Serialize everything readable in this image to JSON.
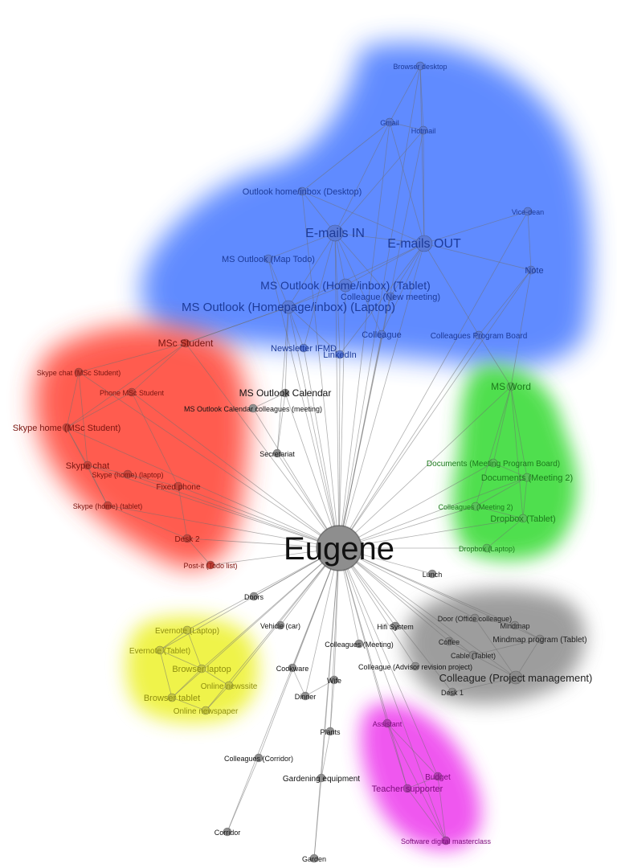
{
  "diagram": {
    "center": "Eugene",
    "clusters": [
      {
        "id": "blue",
        "color": "#4f7fff"
      },
      {
        "id": "red",
        "color": "#ff4b3e"
      },
      {
        "id": "green",
        "color": "#3ddc3a"
      },
      {
        "id": "gray",
        "color": "#8c8c8c"
      },
      {
        "id": "yellow",
        "color": "#eef23a"
      },
      {
        "id": "magenta",
        "color": "#ee44ee"
      }
    ],
    "nodes": [
      {
        "id": "eugene",
        "label": "Eugene",
        "cluster": "none",
        "size": "xl"
      },
      {
        "id": "browser_desktop",
        "label": "Browser desktop",
        "cluster": "blue"
      },
      {
        "id": "gmail",
        "label": "Gmail",
        "cluster": "blue"
      },
      {
        "id": "hotmail",
        "label": "Hotmail",
        "cluster": "blue"
      },
      {
        "id": "outlook_desktop",
        "label": "Outlook home/inbox (Desktop)",
        "cluster": "blue"
      },
      {
        "id": "vice_dean",
        "label": "Vice-dean",
        "cluster": "blue"
      },
      {
        "id": "emails_in",
        "label": "E-mails IN",
        "cluster": "blue",
        "size": "lg"
      },
      {
        "id": "emails_out",
        "label": "E-mails OUT",
        "cluster": "blue",
        "size": "lg"
      },
      {
        "id": "ms_outlook_map",
        "label": "MS Outlook (Map Todo)",
        "cluster": "blue"
      },
      {
        "id": "note",
        "label": "Note",
        "cluster": "blue"
      },
      {
        "id": "ms_outlook_tablet",
        "label": "MS Outlook (Home/inbox) (Tablet)",
        "cluster": "blue",
        "size": "md"
      },
      {
        "id": "colleague_new_meeting",
        "label": "Colleague (New meeting)",
        "cluster": "blue"
      },
      {
        "id": "ms_outlook_laptop",
        "label": "MS Outlook (Homepage/inbox) (Laptop)",
        "cluster": "blue",
        "size": "md"
      },
      {
        "id": "colleague",
        "label": "Colleague",
        "cluster": "blue"
      },
      {
        "id": "colleagues_program_board",
        "label": "Colleagues Program Board",
        "cluster": "blue"
      },
      {
        "id": "newsletter",
        "label": "Newsletter IFMD",
        "cluster": "blue"
      },
      {
        "id": "linkedin",
        "label": "LinkedIn",
        "cluster": "blue"
      },
      {
        "id": "msc_student",
        "label": "MSc Student",
        "cluster": "red"
      },
      {
        "id": "skype_chat_msc",
        "label": "Skype chat (MSc Student)",
        "cluster": "red"
      },
      {
        "id": "phone_msc",
        "label": "Phone MSc Student",
        "cluster": "red"
      },
      {
        "id": "skype_home_msc",
        "label": "Skype home (MSc Student)",
        "cluster": "red"
      },
      {
        "id": "skype_chat",
        "label": "Skype chat",
        "cluster": "red"
      },
      {
        "id": "skype_home_laptop",
        "label": "Skype (home) (laptop)",
        "cluster": "red"
      },
      {
        "id": "fixed_phone",
        "label": "Fixed phone",
        "cluster": "red"
      },
      {
        "id": "skype_home_tablet",
        "label": "Skype (home) (tablet)",
        "cluster": "red"
      },
      {
        "id": "desk2",
        "label": "Desk 2",
        "cluster": "red"
      },
      {
        "id": "postit",
        "label": "Post-it (Todo list)",
        "cluster": "red"
      },
      {
        "id": "ms_outlook_calendar",
        "label": "MS Outlook Calendar",
        "cluster": "none"
      },
      {
        "id": "ms_outlook_cal_coll",
        "label": "MS Outlook Calendar colleagues (meeting)",
        "cluster": "none"
      },
      {
        "id": "secretariat",
        "label": "Secretariat",
        "cluster": "none"
      },
      {
        "id": "ms_word",
        "label": "MS Word",
        "cluster": "green"
      },
      {
        "id": "docs_meeting_board",
        "label": "Documents (Meeting Program Board)",
        "cluster": "green"
      },
      {
        "id": "docs_meeting2",
        "label": "Documents (Meeting 2)",
        "cluster": "green"
      },
      {
        "id": "colleagues_meeting2",
        "label": "Colleagues (Meeting 2)",
        "cluster": "green"
      },
      {
        "id": "dropbox_tablet",
        "label": "Dropbox (Tablet)",
        "cluster": "green"
      },
      {
        "id": "dropbox_laptop",
        "label": "Dropbox (Laptop)",
        "cluster": "green"
      },
      {
        "id": "lunch",
        "label": "Lunch",
        "cluster": "none"
      },
      {
        "id": "doors",
        "label": "Doors",
        "cluster": "none"
      },
      {
        "id": "door_office",
        "label": "Door (Office colleague)",
        "cluster": "gray"
      },
      {
        "id": "mindmap",
        "label": "Mindmap",
        "cluster": "gray"
      },
      {
        "id": "mindmap_program",
        "label": "Mindmap program (Tablet)",
        "cluster": "gray"
      },
      {
        "id": "coffee",
        "label": "Coffee",
        "cluster": "gray"
      },
      {
        "id": "cable_tablet",
        "label": "Cable (Tablet)",
        "cluster": "gray"
      },
      {
        "id": "colleague_project",
        "label": "Colleague (Project management)",
        "cluster": "gray",
        "size": "md"
      },
      {
        "id": "desk1",
        "label": "Desk 1",
        "cluster": "gray"
      },
      {
        "id": "colleague_advisor",
        "label": "Colleague (Advisor revision project)",
        "cluster": "none"
      },
      {
        "id": "hifi",
        "label": "Hifi System",
        "cluster": "none"
      },
      {
        "id": "vehicle",
        "label": "Vehicle (car)",
        "cluster": "none"
      },
      {
        "id": "colleagues_meeting",
        "label": "Colleagues (Meeting)",
        "cluster": "none"
      },
      {
        "id": "evernote_laptop",
        "label": "Evernote (Laptop)",
        "cluster": "yellow"
      },
      {
        "id": "evernote_tablet",
        "label": "Evernote (Tablet)",
        "cluster": "yellow"
      },
      {
        "id": "browser_laptop",
        "label": "Browser laptop",
        "cluster": "yellow"
      },
      {
        "id": "online_newssite",
        "label": "Online newssite",
        "cluster": "yellow"
      },
      {
        "id": "browser_tablet",
        "label": "Browser tablet",
        "cluster": "yellow"
      },
      {
        "id": "online_newspaper",
        "label": "Online newspaper",
        "cluster": "yellow"
      },
      {
        "id": "cookware",
        "label": "Cookware",
        "cluster": "none"
      },
      {
        "id": "wife",
        "label": "Wife",
        "cluster": "none"
      },
      {
        "id": "dinner",
        "label": "Dinner",
        "cluster": "none"
      },
      {
        "id": "plants",
        "label": "Plants",
        "cluster": "none"
      },
      {
        "id": "colleagues_corridor",
        "label": "Colleagues (Corridor)",
        "cluster": "none"
      },
      {
        "id": "gardening",
        "label": "Gardening equipment",
        "cluster": "none"
      },
      {
        "id": "corridor",
        "label": "Corridor",
        "cluster": "none"
      },
      {
        "id": "garden",
        "label": "Garden",
        "cluster": "none"
      },
      {
        "id": "assistant",
        "label": "Assistant",
        "cluster": "magenta"
      },
      {
        "id": "budget",
        "label": "Budget",
        "cluster": "magenta"
      },
      {
        "id": "teacher_supporter",
        "label": "Teacher supporter",
        "cluster": "magenta"
      },
      {
        "id": "software_masterclass",
        "label": "Software digital masterclass",
        "cluster": "magenta"
      }
    ],
    "edges": [
      [
        "browser_desktop",
        "gmail"
      ],
      [
        "browser_desktop",
        "hotmail"
      ],
      [
        "browser_desktop",
        "emails_out"
      ],
      [
        "gmail",
        "hotmail"
      ],
      [
        "gmail",
        "emails_in"
      ],
      [
        "gmail",
        "emails_out"
      ],
      [
        "hotmail",
        "emails_out"
      ],
      [
        "hotmail",
        "emails_in"
      ],
      [
        "outlook_desktop",
        "emails_in"
      ],
      [
        "outlook_desktop",
        "emails_out"
      ],
      [
        "outlook_desktop",
        "gmail"
      ],
      [
        "vice_dean",
        "note"
      ],
      [
        "vice_dean",
        "emails_out"
      ],
      [
        "note",
        "emails_out"
      ],
      [
        "note",
        "ms_word"
      ],
      [
        "emails_in",
        "emails_out"
      ],
      [
        "emails_in",
        "ms_outlook_map"
      ],
      [
        "emails_in",
        "ms_outlook_tablet"
      ],
      [
        "emails_in",
        "ms_outlook_laptop"
      ],
      [
        "emails_in",
        "colleague"
      ],
      [
        "emails_in",
        "newsletter"
      ],
      [
        "emails_in",
        "linkedin"
      ],
      [
        "emails_in",
        "colleague_new_meeting"
      ],
      [
        "emails_out",
        "ms_outlook_tablet"
      ],
      [
        "emails_out",
        "ms_outlook_laptop"
      ],
      [
        "emails_out",
        "colleague"
      ],
      [
        "emails_out",
        "colleagues_program_board"
      ],
      [
        "emails_out",
        "colleague_new_meeting"
      ],
      [
        "emails_out",
        "linkedin"
      ],
      [
        "ms_outlook_map",
        "ms_outlook_laptop"
      ],
      [
        "ms_outlook_tablet",
        "ms_outlook_laptop"
      ],
      [
        "ms_outlook_laptop",
        "msc_student"
      ],
      [
        "ms_outlook_laptop",
        "newsletter"
      ],
      [
        "ms_outlook_laptop",
        "ms_outlook_calendar"
      ],
      [
        "ms_outlook_laptop",
        "linkedin"
      ],
      [
        "ms_outlook_laptop",
        "secretariat"
      ],
      [
        "colleagues_program_board",
        "ms_word"
      ],
      [
        "colleagues_program_board",
        "note"
      ],
      [
        "msc_student",
        "skype_chat_msc"
      ],
      [
        "msc_student",
        "phone_msc"
      ],
      [
        "msc_student",
        "skype_home_msc"
      ],
      [
        "msc_student",
        "ms_outlook_laptop"
      ],
      [
        "skype_chat_msc",
        "skype_home_msc"
      ],
      [
        "skype_chat_msc",
        "skype_chat"
      ],
      [
        "phone_msc",
        "fixed_phone"
      ],
      [
        "phone_msc",
        "skype_home_msc"
      ],
      [
        "skype_home_msc",
        "skype_chat"
      ],
      [
        "skype_home_msc",
        "skype_home_tablet"
      ],
      [
        "skype_chat",
        "skype_home_laptop"
      ],
      [
        "skype_chat",
        "skype_home_tablet"
      ],
      [
        "skype_home_laptop",
        "fixed_phone"
      ],
      [
        "fixed_phone",
        "desk2"
      ],
      [
        "skype_home_tablet",
        "desk2"
      ],
      [
        "desk2",
        "postit"
      ],
      [
        "ms_outlook_calendar",
        "ms_outlook_cal_coll"
      ],
      [
        "ms_outlook_calendar",
        "secretariat"
      ],
      [
        "ms_word",
        "docs_meeting_board"
      ],
      [
        "ms_word",
        "docs_meeting2"
      ],
      [
        "ms_word",
        "dropbox_tablet"
      ],
      [
        "ms_word",
        "colleagues_meeting2"
      ],
      [
        "docs_meeting_board",
        "docs_meeting2"
      ],
      [
        "docs_meeting2",
        "dropbox_tablet"
      ],
      [
        "docs_meeting2",
        "colleagues_meeting2"
      ],
      [
        "dropbox_tablet",
        "dropbox_laptop"
      ],
      [
        "colleagues_meeting2",
        "dropbox_tablet"
      ],
      [
        "door_office",
        "mindmap"
      ],
      [
        "mindmap",
        "mindmap_program"
      ],
      [
        "coffee",
        "cable_tablet"
      ],
      [
        "cable_tablet",
        "mindmap_program"
      ],
      [
        "cable_tablet",
        "colleague_project"
      ],
      [
        "colleague_project",
        "desk1"
      ],
      [
        "colleague_project",
        "mindmap_program"
      ],
      [
        "colleague_project",
        "door_office"
      ],
      [
        "evernote_laptop",
        "evernote_tablet"
      ],
      [
        "evernote_laptop",
        "browser_laptop"
      ],
      [
        "evernote_tablet",
        "browser_tablet"
      ],
      [
        "evernote_tablet",
        "browser_laptop"
      ],
      [
        "browser_laptop",
        "online_newssite"
      ],
      [
        "browser_laptop",
        "browser_tablet"
      ],
      [
        "browser_tablet",
        "online_newspaper"
      ],
      [
        "online_newssite",
        "online_newspaper"
      ],
      [
        "cookware",
        "dinner"
      ],
      [
        "wife",
        "dinner"
      ],
      [
        "colleagues_corridor",
        "corridor"
      ],
      [
        "gardening",
        "garden"
      ],
      [
        "plants",
        "gardening"
      ],
      [
        "assistant",
        "teacher_supporter"
      ],
      [
        "assistant",
        "budget"
      ],
      [
        "assistant",
        "software_masterclass"
      ],
      [
        "teacher_supporter",
        "budget"
      ],
      [
        "teacher_supporter",
        "software_masterclass"
      ],
      [
        "budget",
        "software_masterclass"
      ],
      [
        "wife",
        "plants"
      ]
    ]
  }
}
